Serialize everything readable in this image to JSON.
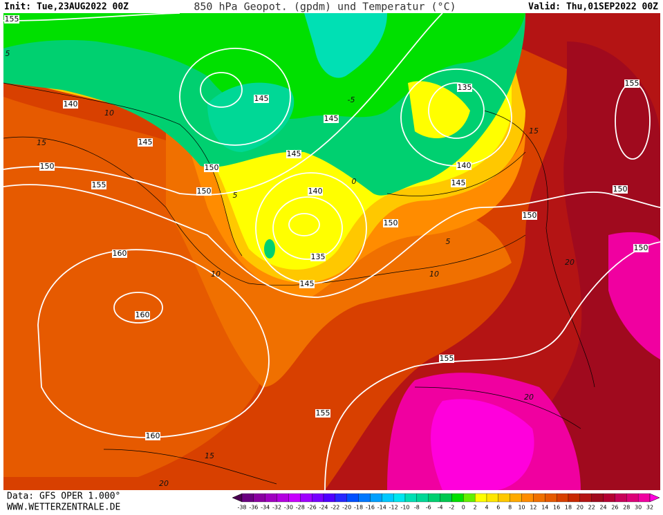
{
  "header": {
    "init": "Init: Tue,23AUG2022 00Z",
    "title": "850 hPa Geopot. (gpdm) und Temperatur (°C)",
    "valid": "Valid: Thu,01SEP2022 00Z"
  },
  "map": {
    "geopotential_labels": [
      "155",
      "140",
      "145",
      "150",
      "155",
      "150",
      "150",
      "145",
      "145",
      "145",
      "140",
      "135",
      "140",
      "145",
      "150",
      "150",
      "155",
      "150",
      "150",
      "160",
      "160",
      "135",
      "145",
      "155",
      "155",
      "160"
    ],
    "isotherm_labels": [
      "10",
      "15",
      "5",
      "10",
      "0",
      "-5",
      "5",
      "10",
      "15",
      "20",
      "20",
      "15",
      "20",
      "5"
    ]
  },
  "footer": {
    "data_source": "Data: GFS OPER 1.000°",
    "website": "WWW.WETTERZENTRALE.DE"
  },
  "legend": {
    "labels": [
      -38,
      -36,
      -34,
      -32,
      -30,
      -28,
      -26,
      -24,
      -22,
      -20,
      -18,
      -16,
      -14,
      -12,
      -10,
      -8,
      -6,
      -4,
      -2,
      0,
      2,
      4,
      6,
      8,
      10,
      12,
      14,
      16,
      18,
      20,
      22,
      24,
      26,
      28,
      30,
      32
    ],
    "colors": [
      "#4a0050",
      "#6a0080",
      "#8a00a0",
      "#a000c0",
      "#b400e0",
      "#c800ff",
      "#a000ff",
      "#7800ff",
      "#5000ff",
      "#2828ff",
      "#0050ff",
      "#0078ff",
      "#00a0ff",
      "#00c8ff",
      "#00e6f0",
      "#00e0b4",
      "#00d896",
      "#00d070",
      "#00c850",
      "#00e000",
      "#64f000",
      "#ffff00",
      "#ffe600",
      "#ffc800",
      "#ffaa00",
      "#ff8c00",
      "#f07000",
      "#e65a00",
      "#d84000",
      "#c82800",
      "#b41414",
      "#a00a1e",
      "#b40032",
      "#c8005a",
      "#dc0078",
      "#f000a0",
      "#ff00dc"
    ]
  }
}
